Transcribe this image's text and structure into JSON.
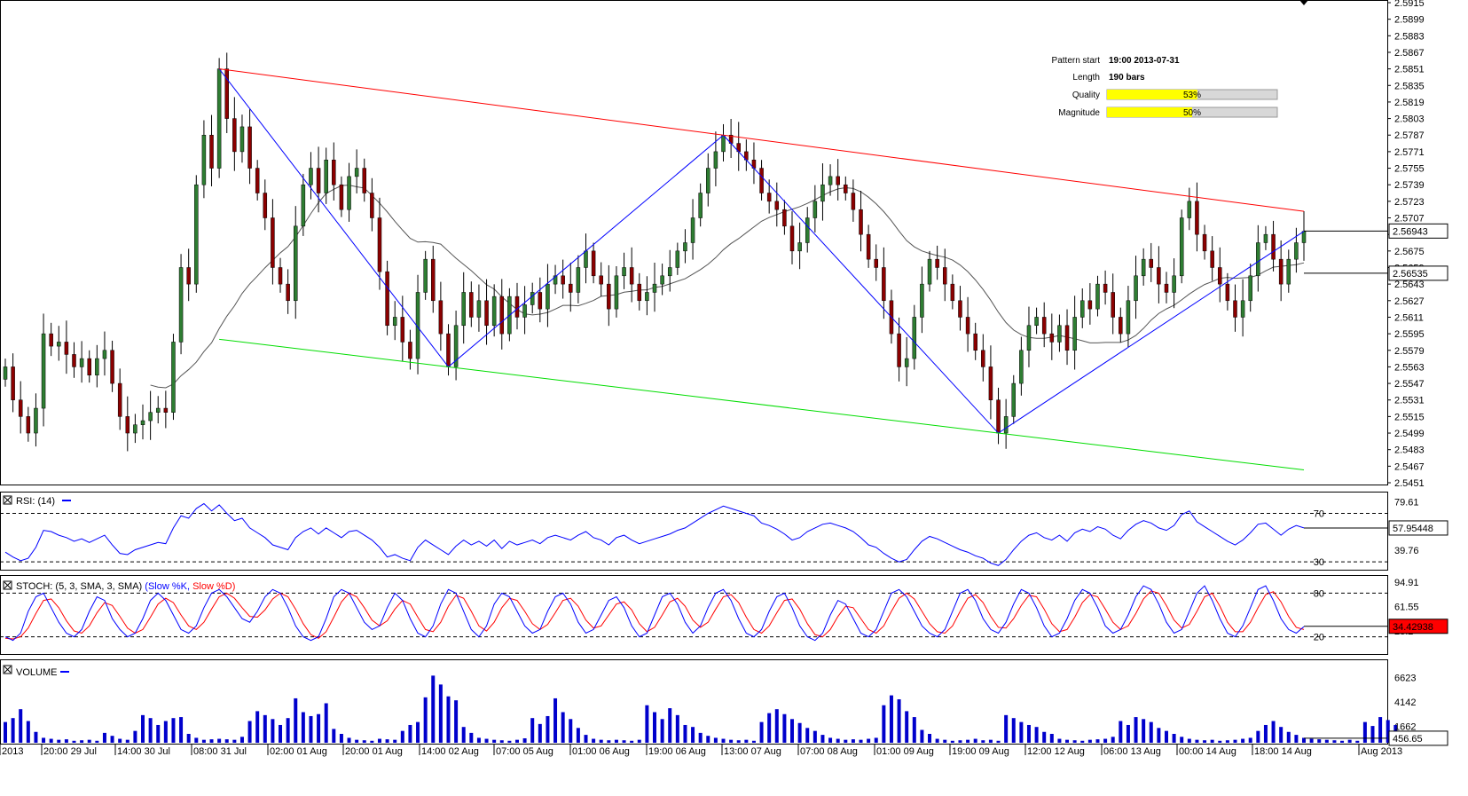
{
  "info": {
    "pattern_start_label": "Pattern start",
    "pattern_start_value": "19:00 2013-07-31",
    "length_label": "Length",
    "length_value": "190 bars",
    "quality_label": "Quality",
    "quality_value": "53%",
    "quality_fraction": 0.53,
    "magnitude_label": "Magnitude",
    "magnitude_value": "50%",
    "magnitude_fraction": 0.5
  },
  "colors": {
    "up_candle": "#2e7d32",
    "down_candle": "#8b0000",
    "resistance": "#ff0000",
    "support": "#00dd00",
    "zigzag": "#0000ff",
    "moving_average": "#555555",
    "rsi_line": "#0000ff",
    "stoch_k": "#0000ff",
    "stoch_d": "#ff0000",
    "volume": "#0000cc",
    "gauge_fill": "#ffff00"
  },
  "chart_data": [
    {
      "type": "candlestick",
      "name": "price",
      "ylim": [
        2.5451,
        2.5915
      ],
      "y_ticks": [
        "2.5915",
        "2.5899",
        "2.5883",
        "2.5867",
        "2.5851",
        "2.5835",
        "2.5819",
        "2.5803",
        "2.5787",
        "2.5771",
        "2.5755",
        "2.5739",
        "2.5723",
        "2.5707",
        "2.5691",
        "2.5675",
        "2.5659",
        "2.5643",
        "2.5627",
        "2.5611",
        "2.5595",
        "2.5579",
        "2.5563",
        "2.5547",
        "2.5531",
        "2.5515",
        "2.5499",
        "2.5483",
        "2.5467",
        "2.5451"
      ],
      "current_price_label": "2.56943",
      "current_price": 2.56943,
      "ma_price_label": "2.56535",
      "ma_price": 2.56535,
      "x_labels": [
        "2013",
        "20:00 29 Jul",
        "14:00 30 Jul",
        "08:00 31 Jul",
        "02:00 01 Aug",
        "20:00 01 Aug",
        "14:00 02 Aug",
        "07:00 05 Aug",
        "01:00 06 Aug",
        "19:00 06 Aug",
        "13:00 07 Aug",
        "07:00 08 Aug",
        "01:00 09 Aug",
        "19:00 09 Aug",
        "12:00 12 Aug",
        "06:00 13 Aug",
        "00:00 14 Aug",
        "18:00 14 Aug",
        "Aug 2013"
      ],
      "closes": [
        2.5563,
        2.5531,
        2.5515,
        2.5499,
        2.5523,
        2.5595,
        2.5583,
        2.5587,
        2.5575,
        2.5563,
        2.5571,
        2.5555,
        2.5571,
        2.5579,
        2.5547,
        2.5515,
        2.5499,
        2.5507,
        2.5511,
        2.5519,
        2.5523,
        2.5519,
        2.5587,
        2.5659,
        2.5643,
        2.5739,
        2.5787,
        2.5755,
        2.5851,
        2.5803,
        2.5771,
        2.5795,
        2.5755,
        2.5731,
        2.5707,
        2.5659,
        2.5643,
        2.5627,
        2.5699,
        2.5739,
        2.5755,
        2.5731,
        2.5763,
        2.5739,
        2.5715,
        2.5747,
        2.5755,
        2.5731,
        2.5707,
        2.5655,
        2.5603,
        2.5611,
        2.5587,
        2.5571,
        2.5635,
        2.5667,
        2.5627,
        2.5595,
        2.5563,
        2.5603,
        2.5635,
        2.5611,
        2.5627,
        2.5603,
        2.5631,
        2.5595,
        2.5631,
        2.5611,
        2.5623,
        2.5635,
        2.5619,
        2.5643,
        2.5651,
        2.5643,
        2.5635,
        2.5659,
        2.5675,
        2.5651,
        2.5643,
        2.5619,
        2.5651,
        2.5659,
        2.5643,
        2.5627,
        2.5635,
        2.5643,
        2.5651,
        2.5659,
        2.5675,
        2.5683,
        2.5707,
        2.5731,
        2.5755,
        2.5771,
        2.5787,
        2.5779,
        2.5771,
        2.5763,
        2.5755,
        2.5731,
        2.5723,
        2.5715,
        2.5699,
        2.5675,
        2.5683,
        2.5707,
        2.5723,
        2.5739,
        2.5747,
        2.5739,
        2.5731,
        2.5715,
        2.5691,
        2.5667,
        2.5659,
        2.5627,
        2.5595,
        2.5563,
        2.5571,
        2.5611,
        2.5643,
        2.5667,
        2.5659,
        2.5643,
        2.5627,
        2.5611,
        2.5595,
        2.5579,
        2.5563,
        2.5531,
        2.5499,
        2.5515,
        2.5547,
        2.5579,
        2.5603,
        2.5611,
        2.5595,
        2.5587,
        2.5603,
        2.5579,
        2.5611,
        2.5627,
        2.5619,
        2.5643,
        2.5635,
        2.5611,
        2.5595,
        2.5627,
        2.5651,
        2.5667,
        2.5659,
        2.5643,
        2.5635,
        2.5651,
        2.5707,
        2.5723,
        2.5691,
        2.5675,
        2.5659,
        2.5643,
        2.5627,
        2.5611,
        2.5627,
        2.5651,
        2.5683,
        2.5691,
        2.5667,
        2.5643,
        2.5667,
        2.5683,
        2.5694
      ]
    },
    {
      "type": "line",
      "name": "RSI: (14)",
      "title": "RSI: (14)",
      "ylim": [
        25,
        85
      ],
      "levels": [
        70,
        30
      ],
      "y_ticks": [
        "79.61",
        "39.76"
      ],
      "current_label": "57.95448",
      "current": 57.95448,
      "values": [
        38,
        34,
        31,
        33,
        42,
        56,
        55,
        52,
        50,
        47,
        49,
        46,
        49,
        52,
        44,
        37,
        36,
        40,
        42,
        44,
        46,
        45,
        58,
        68,
        66,
        74,
        78,
        72,
        77,
        70,
        64,
        66,
        58,
        54,
        50,
        44,
        42,
        40,
        50,
        55,
        58,
        53,
        58,
        54,
        50,
        55,
        56,
        52,
        48,
        42,
        34,
        36,
        33,
        31,
        42,
        48,
        44,
        40,
        36,
        43,
        48,
        44,
        47,
        43,
        48,
        41,
        47,
        44,
        46,
        48,
        45,
        50,
        52,
        50,
        48,
        52,
        55,
        50,
        48,
        44,
        50,
        52,
        48,
        45,
        47,
        49,
        51,
        53,
        56,
        58,
        62,
        66,
        70,
        73,
        76,
        74,
        72,
        70,
        68,
        62,
        60,
        57,
        53,
        48,
        50,
        55,
        58,
        61,
        62,
        60,
        58,
        55,
        50,
        44,
        42,
        37,
        33,
        30,
        32,
        40,
        47,
        51,
        49,
        46,
        43,
        40,
        38,
        35,
        33,
        29,
        27,
        32,
        40,
        47,
        52,
        54,
        50,
        48,
        52,
        47,
        54,
        57,
        55,
        59,
        57,
        52,
        49,
        56,
        61,
        64,
        62,
        58,
        56,
        60,
        69,
        72,
        63,
        59,
        55,
        51,
        47,
        44,
        48,
        54,
        61,
        62,
        57,
        52,
        57,
        60,
        58
      ]
    },
    {
      "type": "line",
      "name": "STOCH",
      "title": "STOCH: (5, 3, SMA, 3, SMA)",
      "series_labels": [
        "(Slow %K,",
        "Slow %D)"
      ],
      "ylim": [
        0,
        100
      ],
      "levels": [
        80,
        20
      ],
      "y_ticks": [
        "94.91",
        "61.55",
        "28.2"
      ],
      "current_label": "34.42938",
      "current": 34.42938,
      "k_values": [
        20,
        15,
        25,
        55,
        75,
        80,
        60,
        40,
        25,
        20,
        30,
        55,
        75,
        70,
        45,
        30,
        20,
        25,
        45,
        70,
        80,
        70,
        50,
        30,
        25,
        35,
        60,
        80,
        85,
        75,
        60,
        45,
        40,
        55,
        75,
        85,
        80,
        60,
        35,
        20,
        15,
        20,
        45,
        75,
        85,
        80,
        60,
        40,
        30,
        35,
        60,
        80,
        70,
        45,
        25,
        20,
        35,
        65,
        85,
        80,
        55,
        30,
        20,
        35,
        65,
        80,
        75,
        55,
        35,
        25,
        30,
        55,
        75,
        80,
        65,
        40,
        25,
        30,
        50,
        70,
        75,
        60,
        35,
        20,
        25,
        50,
        75,
        80,
        65,
        40,
        25,
        35,
        60,
        80,
        85,
        70,
        45,
        25,
        20,
        30,
        55,
        75,
        80,
        60,
        35,
        20,
        15,
        25,
        50,
        70,
        65,
        45,
        25,
        20,
        30,
        55,
        80,
        85,
        75,
        55,
        35,
        25,
        20,
        30,
        55,
        80,
        85,
        70,
        45,
        30,
        25,
        40,
        65,
        85,
        80,
        60,
        35,
        20,
        25,
        45,
        70,
        85,
        80,
        60,
        35,
        25,
        30,
        50,
        75,
        90,
        85,
        65,
        40,
        25,
        30,
        55,
        80,
        90,
        70,
        45,
        25,
        20,
        35,
        60,
        85,
        90,
        70,
        45,
        30,
        25,
        34
      ],
      "d_values": [
        18,
        17,
        20,
        32,
        52,
        70,
        72,
        60,
        42,
        28,
        25,
        35,
        53,
        67,
        63,
        48,
        32,
        25,
        30,
        47,
        65,
        73,
        67,
        50,
        35,
        30,
        40,
        58,
        75,
        80,
        73,
        60,
        48,
        47,
        57,
        72,
        80,
        75,
        58,
        38,
        23,
        18,
        27,
        47,
        68,
        80,
        75,
        60,
        43,
        35,
        42,
        58,
        70,
        65,
        47,
        30,
        27,
        40,
        62,
        77,
        73,
        55,
        35,
        28,
        40,
        60,
        73,
        70,
        55,
        38,
        30,
        37,
        53,
        70,
        73,
        62,
        43,
        32,
        35,
        50,
        65,
        68,
        57,
        38,
        27,
        33,
        50,
        68,
        73,
        62,
        43,
        33,
        40,
        58,
        75,
        78,
        67,
        47,
        30,
        25,
        35,
        53,
        70,
        72,
        58,
        38,
        23,
        20,
        30,
        48,
        62,
        60,
        45,
        30,
        25,
        35,
        55,
        73,
        80,
        72,
        55,
        38,
        27,
        25,
        35,
        55,
        73,
        78,
        67,
        48,
        33,
        32,
        45,
        63,
        77,
        75,
        58,
        38,
        27,
        30,
        47,
        67,
        78,
        75,
        58,
        40,
        30,
        35,
        52,
        72,
        83,
        80,
        63,
        43,
        32,
        37,
        55,
        75,
        80,
        62,
        40,
        27,
        27,
        40,
        60,
        78,
        82,
        68,
        48,
        33,
        30
      ]
    },
    {
      "type": "bar",
      "name": "VOLUME",
      "title": "VOLUME",
      "ylim": [
        0,
        8000
      ],
      "y_ticks": [
        "6623",
        "4142",
        "1662"
      ],
      "current_label": "456.65",
      "current": 456.65,
      "values": [
        2100,
        2500,
        3400,
        2200,
        1100,
        500,
        400,
        300,
        350,
        200,
        250,
        300,
        200,
        1000,
        700,
        400,
        300,
        1200,
        2800,
        2500,
        1800,
        2200,
        2500,
        2600,
        900,
        500,
        300,
        350,
        400,
        350,
        300,
        600,
        2200,
        3200,
        2800,
        2400,
        1800,
        2500,
        4500,
        3100,
        2700,
        2900,
        4000,
        1400,
        900,
        500,
        300,
        250,
        200,
        400,
        350,
        300,
        1200,
        1800,
        2100,
        4600,
        6800,
        5900,
        4700,
        4300,
        1600,
        1000,
        500,
        400,
        300,
        250,
        200,
        300,
        450,
        2500,
        1900,
        2700,
        4500,
        3100,
        2400,
        1500,
        800,
        400,
        300,
        250,
        300,
        250,
        200,
        300,
        3800,
        3100,
        2400,
        3500,
        2800,
        1800,
        1600,
        1000,
        700,
        500,
        400,
        300,
        250,
        300,
        200,
        2100,
        3000,
        3400,
        2900,
        2400,
        2000,
        1500,
        1200,
        800,
        500,
        400,
        300,
        350,
        300,
        400,
        500,
        3800,
        4800,
        4400,
        3200,
        2600,
        1300,
        900,
        400,
        300,
        200,
        250,
        300,
        400,
        250,
        300,
        200,
        2800,
        2500,
        2100,
        1800,
        1600,
        1100,
        900,
        400,
        300,
        250,
        200,
        300,
        350,
        400,
        600,
        2200,
        1800,
        2600,
        2400,
        2100,
        1500,
        1200,
        900,
        600,
        400,
        300,
        250,
        300,
        200,
        250,
        300,
        400,
        500,
        1200,
        1800,
        2200,
        1600,
        1100,
        800,
        500,
        400,
        350,
        300,
        250,
        200,
        300,
        200,
        2100,
        1700,
        2600,
        2300,
        1800,
        1200,
        800,
        450
      ]
    }
  ]
}
